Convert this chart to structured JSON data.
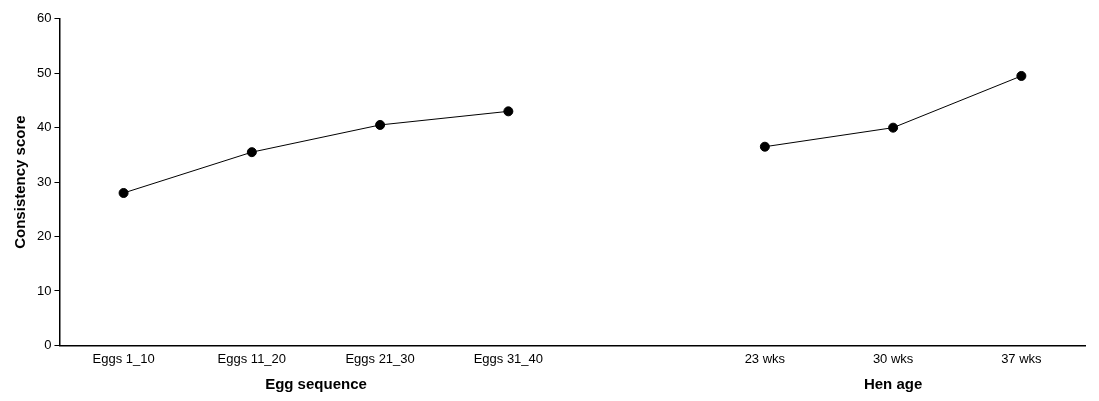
{
  "chart_data": {
    "type": "line",
    "ylabel": "Consistency score",
    "categories": [
      "Eggs 1_10",
      "Eggs 11_20",
      "Eggs 21_30",
      "Eggs 31_40",
      null,
      "23 wks",
      "30 wks",
      "37 wks"
    ],
    "series": [
      {
        "color": "#000000",
        "values": [
          28,
          35.5,
          40.5,
          43,
          null,
          36.5,
          40,
          49.5
        ]
      }
    ],
    "ylim": [
      0,
      60
    ],
    "yticks": [
      0,
      10,
      20,
      30,
      40,
      50,
      60
    ],
    "grid": false,
    "legend": false,
    "marker": "circle",
    "line_style": "solid",
    "annotations": [
      "Egg sequence",
      "Hen age"
    ]
  }
}
